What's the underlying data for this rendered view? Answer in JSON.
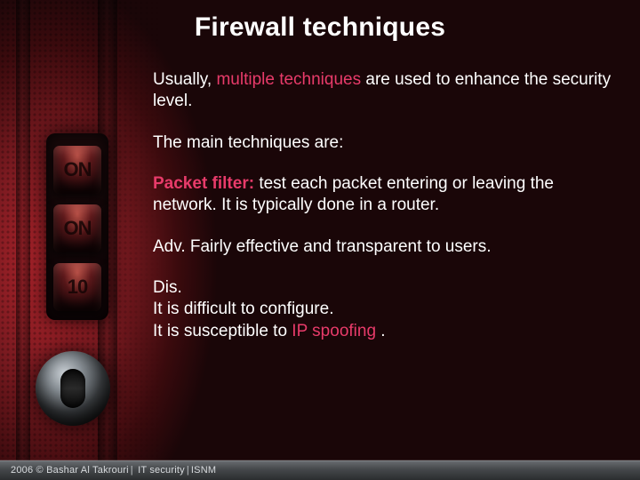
{
  "colors": {
    "text": "#ffffff",
    "accent": "#e83b6a",
    "footer_bg_top": "#6a6e72",
    "footer_bg_bottom": "#2b2d2f",
    "bg_red": "#b8252d",
    "bg_darkred": "#3a0a0d",
    "bg_black": "#000000"
  },
  "title": "Firewall techniques",
  "body": {
    "intro_pre": "Usually, ",
    "intro_accent": "multiple techniques",
    "intro_post": " are used to enhance the security level.",
    "lead": "The main techniques are:",
    "tech_name": "Packet filter:",
    "tech_desc": " test each packet entering or leaving the network. It is typically done in a router.",
    "adv": "Adv.  Fairly effective and transparent to users.",
    "dis_label": "Dis.",
    "dis_line1": "It is difficult to configure.",
    "dis_line2_pre": "It is susceptible to ",
    "dis_line2_accent": "IP spoofing",
    "dis_line2_post": " ."
  },
  "footer": {
    "year": "2006 ©",
    "author": "Bashar Al Takrouri",
    "course": "IT security",
    "org": "ISNM"
  },
  "decor": {
    "dial1": "ON",
    "dial2": "ON",
    "dial3": "10"
  }
}
